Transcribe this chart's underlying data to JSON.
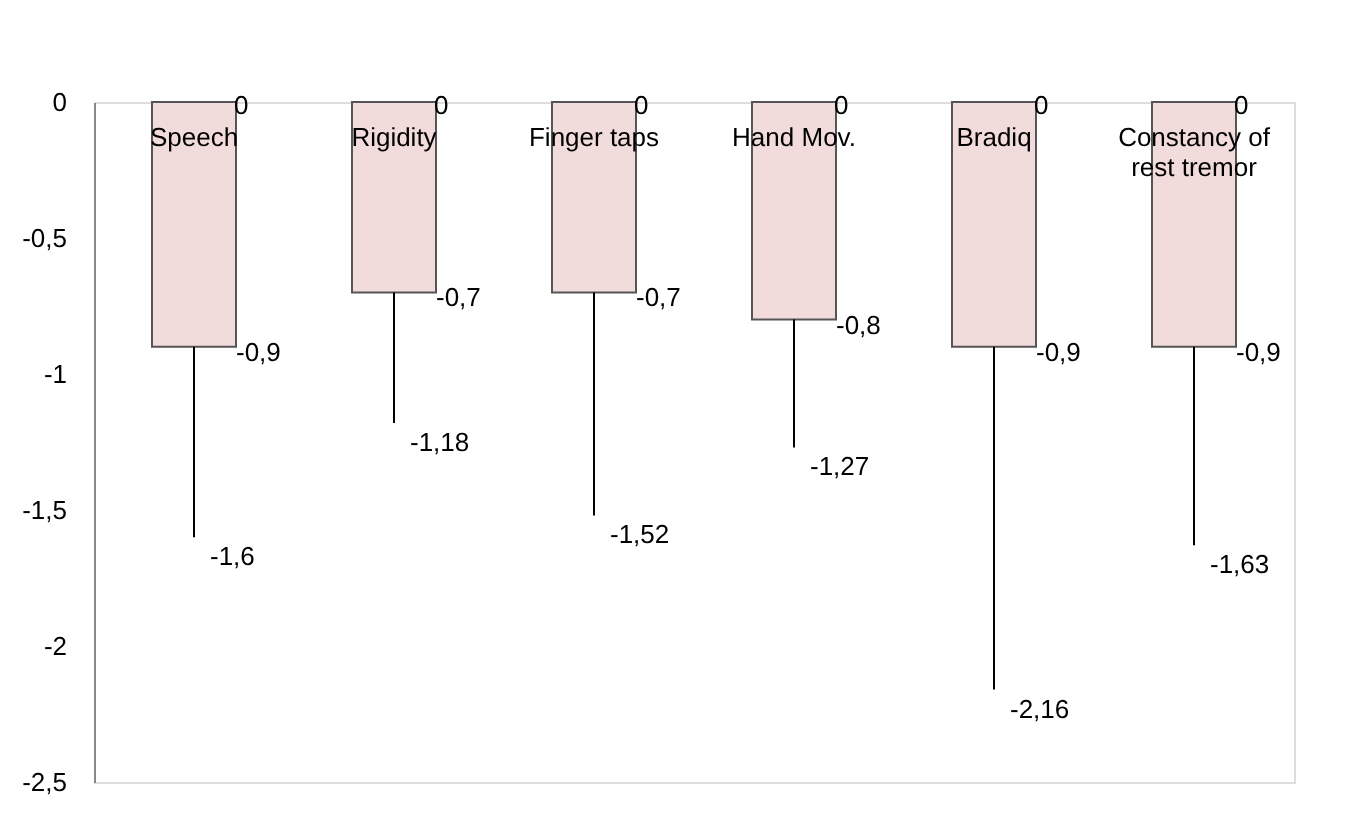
{
  "chart_data": {
    "type": "bar",
    "categories": [
      "Speech",
      "Rigidity",
      "Finger taps",
      "Hand Mov.",
      "Bradiq",
      "Constancy of rest tremor"
    ],
    "values": [
      -0.9,
      -0.7,
      -0.7,
      -0.8,
      -0.9,
      -0.9
    ],
    "value_labels": [
      "-0,9",
      "-0,7",
      "-0,7",
      "-0,8",
      "-0,9",
      "-0,9"
    ],
    "errors": [
      [
        -1.6,
        -0.9
      ],
      [
        -1.18,
        -0.7
      ],
      [
        -1.52,
        -0.7
      ],
      [
        -1.27,
        -0.8
      ],
      [
        -2.16,
        -0.9
      ],
      [
        -1.63,
        -0.9
      ]
    ],
    "color": "#f2dcdb",
    "ylim": [
      -2.5,
      0
    ],
    "yticks": [
      0,
      {
        "value": -0.5,
        "label": "-0,5"
      },
      -1,
      {
        "value": -1.5,
        "label": "-1,5"
      },
      -2,
      {
        "value": -2.5,
        "label": "-2,5"
      }
    ],
    "grid": false,
    "annotations": [
      {
        "text": "0",
        "x": "Speech",
        "y": 0
      },
      {
        "text": "0",
        "x": "Rigidity",
        "y": 0
      },
      {
        "text": "0",
        "x": "Finger taps",
        "y": 0
      },
      {
        "text": "0",
        "x": "Hand Mov.",
        "y": 0
      },
      {
        "text": "0",
        "x": "Bradiq",
        "y": 0
      },
      {
        "text": "0",
        "x": "Constancy of rest tremor",
        "y": 0
      },
      {
        "text": "-1,6",
        "x": "Speech",
        "y": -1.6
      },
      {
        "text": "-1,18",
        "x": "Rigidity",
        "y": -1.18
      },
      {
        "text": "-1,52",
        "x": "Finger taps",
        "y": -1.52
      },
      {
        "text": "-1,27",
        "x": "Hand Mov.",
        "y": -1.27
      },
      {
        "text": "-2,16",
        "x": "Bradiq",
        "y": -2.16
      },
      {
        "text": "-1,63",
        "x": "Constancy of rest tremor",
        "y": -1.63
      }
    ]
  }
}
